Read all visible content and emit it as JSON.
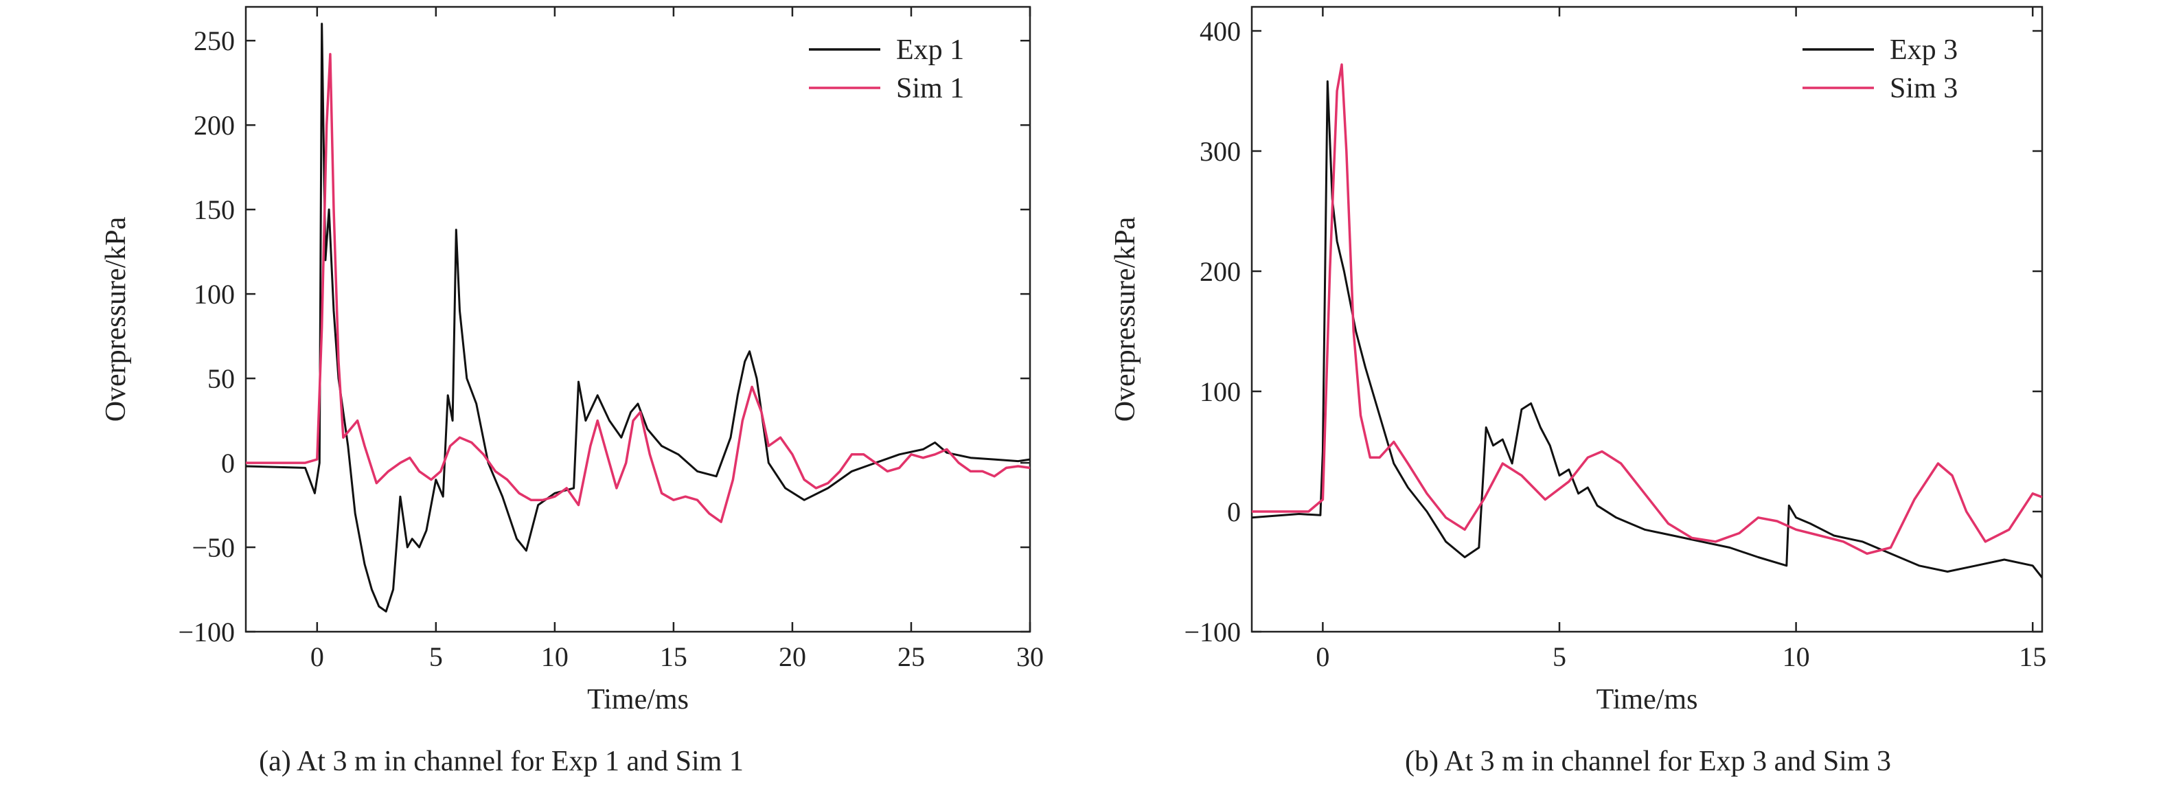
{
  "chart_data": [
    {
      "type": "line",
      "caption": "(a) At 3 m in channel for Exp 1 and Sim 1",
      "xlabel": "Time/ms",
      "ylabel": "Overpressure/kPa",
      "xlim": [
        -3,
        30
      ],
      "ylim": [
        -100,
        270
      ],
      "xticks": [
        0,
        5,
        10,
        15,
        20,
        25,
        30
      ],
      "yticks": [
        -100,
        -50,
        0,
        50,
        100,
        150,
        200,
        250
      ],
      "legend_position": "top-right",
      "series": [
        {
          "name": "Exp 1",
          "color": "#111111",
          "x": [
            -3,
            -0.5,
            -0.1,
            0.1,
            0.2,
            0.35,
            0.5,
            0.7,
            0.9,
            1.1,
            1.3,
            1.6,
            2.0,
            2.3,
            2.6,
            2.9,
            3.2,
            3.5,
            3.8,
            4.0,
            4.3,
            4.6,
            5.0,
            5.3,
            5.5,
            5.7,
            5.85,
            6.0,
            6.3,
            6.7,
            7.2,
            7.8,
            8.4,
            8.8,
            9.3,
            10.0,
            10.8,
            11.0,
            11.3,
            11.8,
            12.3,
            12.8,
            13.2,
            13.5,
            13.9,
            14.5,
            15.2,
            16.0,
            16.8,
            17.4,
            17.7,
            18.0,
            18.2,
            18.5,
            19.0,
            19.7,
            20.5,
            21.5,
            22.5,
            23.5,
            24.5,
            25.5,
            26.0,
            26.5,
            27.5,
            28.5,
            29.5,
            30
          ],
          "y": [
            -2,
            -3,
            -18,
            0,
            260,
            120,
            150,
            90,
            50,
            30,
            10,
            -30,
            -60,
            -75,
            -85,
            -88,
            -75,
            -20,
            -50,
            -45,
            -50,
            -40,
            -10,
            -20,
            40,
            25,
            138,
            90,
            50,
            35,
            0,
            -20,
            -45,
            -52,
            -25,
            -18,
            -15,
            48,
            25,
            40,
            25,
            15,
            30,
            35,
            20,
            10,
            5,
            -5,
            -8,
            15,
            40,
            60,
            66,
            50,
            0,
            -15,
            -22,
            -15,
            -5,
            0,
            5,
            8,
            12,
            6,
            3,
            2,
            1,
            2
          ]
        },
        {
          "name": "Sim 1",
          "color": "#e2336a",
          "x": [
            -3,
            -0.5,
            0,
            0.2,
            0.4,
            0.55,
            0.7,
            0.9,
            1.1,
            1.4,
            1.7,
            2.0,
            2.5,
            3.0,
            3.5,
            3.9,
            4.3,
            4.8,
            5.2,
            5.6,
            6.0,
            6.5,
            7.0,
            7.5,
            8.0,
            8.5,
            9.0,
            9.5,
            10.0,
            10.5,
            11.0,
            11.5,
            11.8,
            12.2,
            12.6,
            13.0,
            13.3,
            13.6,
            14.0,
            14.5,
            15.0,
            15.5,
            16.0,
            16.5,
            17.0,
            17.5,
            17.9,
            18.3,
            18.7,
            19.0,
            19.5,
            20.0,
            20.5,
            21.0,
            21.5,
            22.0,
            22.5,
            23.0,
            23.5,
            24.0,
            24.5,
            25.0,
            25.5,
            26.0,
            26.5,
            27.0,
            27.5,
            28.0,
            28.5,
            29.0,
            29.5,
            30
          ],
          "y": [
            0,
            0,
            2,
            80,
            200,
            242,
            150,
            60,
            15,
            20,
            25,
            10,
            -12,
            -5,
            0,
            3,
            -5,
            -10,
            -5,
            10,
            15,
            12,
            5,
            -5,
            -10,
            -18,
            -22,
            -22,
            -20,
            -15,
            -25,
            10,
            25,
            5,
            -15,
            0,
            25,
            30,
            5,
            -18,
            -22,
            -20,
            -22,
            -30,
            -35,
            -10,
            25,
            45,
            30,
            10,
            15,
            5,
            -10,
            -15,
            -12,
            -5,
            5,
            5,
            0,
            -5,
            -3,
            5,
            3,
            5,
            8,
            0,
            -5,
            -5,
            -8,
            -3,
            -2,
            -3
          ]
        }
      ]
    },
    {
      "type": "line",
      "caption": "(b) At 3 m in channel for Exp 3 and Sim 3",
      "xlabel": "Time/ms",
      "ylabel": "Overpressure/kPa",
      "xlim": [
        -1.5,
        15.2
      ],
      "ylim": [
        -100,
        420
      ],
      "xticks": [
        0,
        5,
        10,
        15
      ],
      "yticks": [
        -100,
        0,
        100,
        200,
        300,
        400
      ],
      "legend_position": "top-right",
      "series": [
        {
          "name": "Exp 3",
          "color": "#111111",
          "x": [
            -1.5,
            -0.5,
            -0.05,
            0.0,
            0.1,
            0.2,
            0.3,
            0.45,
            0.55,
            0.7,
            0.9,
            1.2,
            1.5,
            1.8,
            2.2,
            2.6,
            3.0,
            3.3,
            3.45,
            3.6,
            3.8,
            4.0,
            4.2,
            4.4,
            4.6,
            4.8,
            5.0,
            5.2,
            5.4,
            5.6,
            5.8,
            6.2,
            6.8,
            7.4,
            8.0,
            8.6,
            9.2,
            9.8,
            9.85,
            10.0,
            10.3,
            10.8,
            11.4,
            12.0,
            12.6,
            13.2,
            13.8,
            14.4,
            15.0,
            15.2
          ],
          "y": [
            -5,
            -2,
            -3,
            50,
            358,
            260,
            225,
            200,
            180,
            150,
            120,
            80,
            40,
            20,
            0,
            -25,
            -38,
            -30,
            70,
            55,
            60,
            40,
            85,
            90,
            70,
            55,
            30,
            35,
            15,
            20,
            5,
            -5,
            -15,
            -20,
            -25,
            -30,
            -38,
            -45,
            5,
            -5,
            -10,
            -20,
            -25,
            -35,
            -45,
            -50,
            -45,
            -40,
            -45,
            -55
          ]
        },
        {
          "name": "Sim 3",
          "color": "#e2336a",
          "x": [
            -1.5,
            -0.3,
            0.0,
            0.15,
            0.3,
            0.4,
            0.5,
            0.65,
            0.8,
            1.0,
            1.2,
            1.5,
            1.8,
            2.2,
            2.6,
            3.0,
            3.4,
            3.8,
            4.2,
            4.7,
            5.2,
            5.6,
            5.9,
            6.3,
            6.8,
            7.3,
            7.8,
            8.3,
            8.8,
            9.2,
            9.6,
            10.0,
            10.5,
            11.0,
            11.5,
            12.0,
            12.5,
            13.0,
            13.3,
            13.6,
            14.0,
            14.5,
            15.0,
            15.2
          ],
          "y": [
            0,
            0,
            10,
            200,
            350,
            372,
            300,
            150,
            80,
            45,
            45,
            58,
            40,
            15,
            -5,
            -15,
            10,
            40,
            30,
            10,
            25,
            45,
            50,
            40,
            15,
            -10,
            -22,
            -25,
            -18,
            -5,
            -8,
            -15,
            -20,
            -25,
            -35,
            -30,
            10,
            40,
            30,
            0,
            -25,
            -15,
            15,
            12
          ]
        }
      ]
    }
  ]
}
